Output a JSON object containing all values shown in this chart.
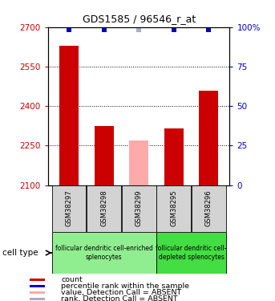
{
  "title": "GDS1585 / 96546_r_at",
  "samples": [
    "GSM38297",
    "GSM38298",
    "GSM38299",
    "GSM38295",
    "GSM38296"
  ],
  "bar_values": [
    2630,
    2325,
    2270,
    2315,
    2460
  ],
  "bar_absent": [
    false,
    false,
    true,
    false,
    false
  ],
  "rank_values": [
    98.5,
    98.5,
    98.5,
    98.5,
    98.5
  ],
  "rank_absent": [
    false,
    false,
    true,
    false,
    false
  ],
  "ylim_left": [
    2100,
    2700
  ],
  "ylim_right": [
    0,
    100
  ],
  "yticks_left": [
    2100,
    2250,
    2400,
    2550,
    2700
  ],
  "yticks_right": [
    0,
    25,
    50,
    75,
    100
  ],
  "bar_color_normal": "#cc0000",
  "bar_color_absent": "#ffaaaa",
  "rank_color_normal": "#0000cc",
  "rank_color_absent": "#aaaacc",
  "bar_width": 0.55,
  "group1_indices": [
    0,
    1,
    2
  ],
  "group2_indices": [
    3,
    4
  ],
  "group1_label": "follicular dendritic cell-enriched\nsplenocytes",
  "group1_color": "#90ee90",
  "group2_label": "follicular dendritic cell-\ndepleted splenocytes",
  "group2_color": "#44dd44",
  "legend_items": [
    {
      "label": "count",
      "color": "#cc0000"
    },
    {
      "label": "percentile rank within the sample",
      "color": "#0000cc"
    },
    {
      "label": "value, Detection Call = ABSENT",
      "color": "#ffaaaa"
    },
    {
      "label": "rank, Detection Call = ABSENT",
      "color": "#aaaacc"
    }
  ],
  "axis_color_left": "#cc0000",
  "axis_color_right": "#0000cc",
  "sample_box_color": "#d3d3d3",
  "cell_type_label": "cell type"
}
